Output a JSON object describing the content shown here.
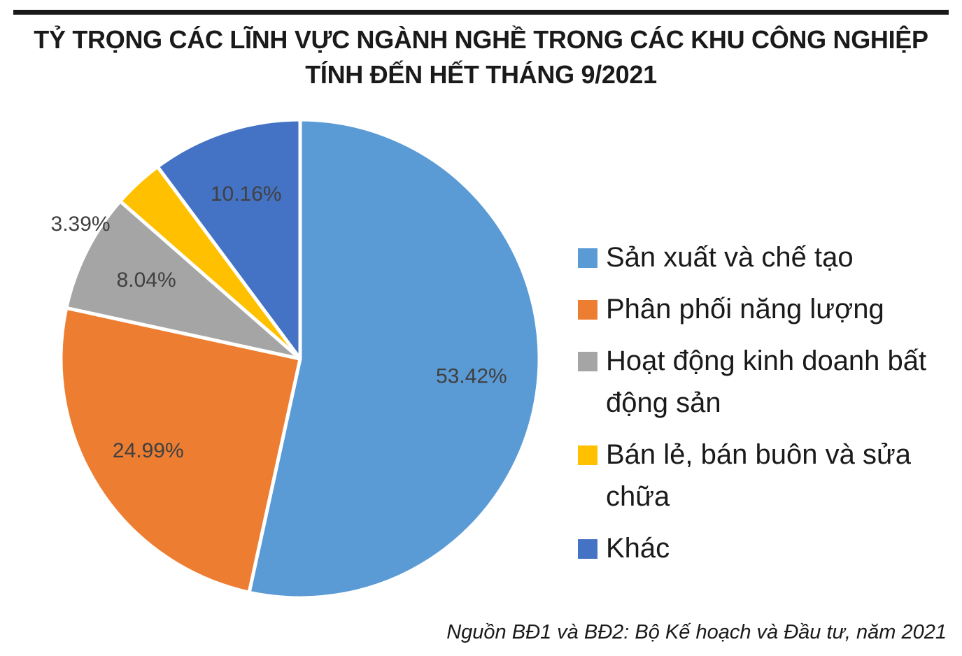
{
  "title": {
    "line1": "TỶ TRỌNG CÁC LĨNH VỰC NGÀNH NGHỀ TRONG CÁC KHU CÔNG NGHIỆP",
    "line2": "TÍNH ĐẾN HẾT THÁNG 9/2021"
  },
  "legend": [
    {
      "label": "Sản xuất và chế tạo",
      "color": "#5B9BD5"
    },
    {
      "label": "Phân phối năng lượng",
      "color": "#ED7D31"
    },
    {
      "label": "Hoạt động kinh doanh bất động sản",
      "color": "#A5A5A5"
    },
    {
      "label": "Bán lẻ, bán buôn và sửa chữa",
      "color": "#FFC000"
    },
    {
      "label": "Khác",
      "color": "#4472C4"
    }
  ],
  "source": "Nguồn BĐ1 và BĐ2: Bộ Kế hoạch và Đầu tư, năm 2021",
  "chart_data": {
    "type": "pie",
    "title": "TỶ TRỌNG CÁC LĨNH VỰC NGÀNH NGHỀ TRONG CÁC KHU CÔNG NGHIỆP TÍNH ĐẾN HẾT THÁNG 9/2021",
    "categories": [
      "Sản xuất và chế tạo",
      "Phân phối năng lượng",
      "Hoạt động kinh doanh bất động sản",
      "Bán lẻ, bán buôn và sửa chữa",
      "Khác"
    ],
    "values": [
      53.42,
      24.99,
      8.04,
      3.39,
      10.16
    ],
    "data_labels": [
      "53.42%",
      "24.99%",
      "8.04%",
      "3.39%",
      "10.16%"
    ],
    "colors": [
      "#5B9BD5",
      "#ED7D31",
      "#A5A5A5",
      "#FFC000",
      "#4472C4"
    ],
    "unit": "%",
    "start_angle": "12 o'clock, clockwise",
    "legend_position": "right"
  }
}
